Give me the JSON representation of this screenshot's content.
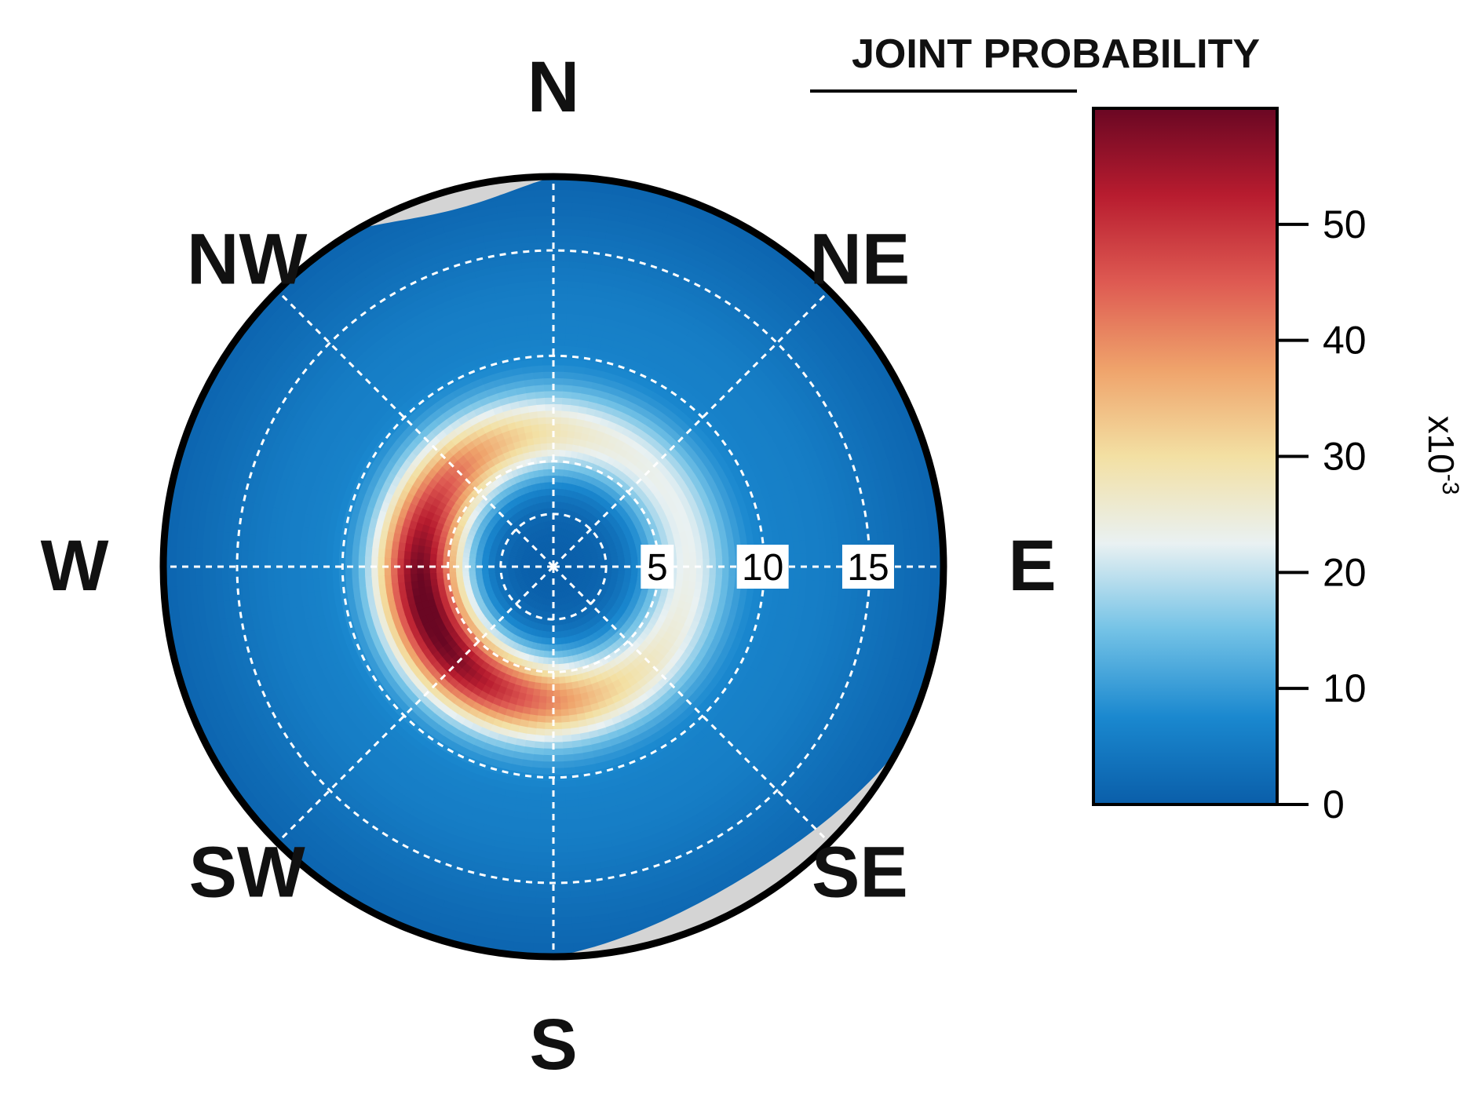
{
  "chart_data": {
    "type": "heatmap",
    "subtype": "polar",
    "title": "",
    "compass_labels": [
      "N",
      "NE",
      "E",
      "SE",
      "S",
      "SW",
      "W",
      "NW"
    ],
    "radial_axis": {
      "ticks": [
        5,
        10,
        15
      ],
      "tick_labels": [
        "5",
        "10",
        "15"
      ],
      "max": 18.5
    },
    "grid": true,
    "colorbar": {
      "title": "JOINT PROBABILITY",
      "multiplier_label": "x10",
      "multiplier_exponent": "-3",
      "range": [
        0,
        60
      ],
      "ticks": [
        0,
        10,
        20,
        30,
        40,
        50
      ],
      "tick_labels": [
        "0",
        "10",
        "20",
        "30",
        "40",
        "50"
      ],
      "colors": [
        "#0a5ea9",
        "#1a88cf",
        "#73c2e6",
        "#e9f1f2",
        "#f3e0a3",
        "#efa36b",
        "#de5a52",
        "#b81c2f",
        "#6a0723"
      ]
    },
    "peak": {
      "direction_deg": 250,
      "radius": 7,
      "value": 58
    },
    "no_data_color": "#d4d4d4"
  }
}
